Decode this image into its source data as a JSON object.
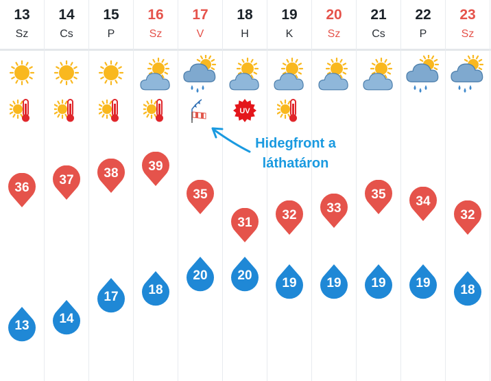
{
  "days": [
    {
      "date": "13",
      "name": "Sz",
      "weekend": false,
      "weather": "sunny-icon",
      "badge": "hot-thermometer-icon",
      "max": "36",
      "min": "13"
    },
    {
      "date": "14",
      "name": "Cs",
      "weekend": false,
      "weather": "sunny-icon",
      "badge": "hot-thermometer-icon",
      "max": "37",
      "min": "14"
    },
    {
      "date": "15",
      "name": "P",
      "weekend": false,
      "weather": "sunny-icon",
      "badge": "hot-thermometer-icon",
      "max": "38",
      "min": "17"
    },
    {
      "date": "16",
      "name": "Sz",
      "weekend": true,
      "weather": "partly-cloudy-icon",
      "badge": "hot-thermometer-icon",
      "max": "39",
      "min": "18"
    },
    {
      "date": "17",
      "name": "V",
      "weekend": true,
      "weather": "cloud-sun-rain-icon",
      "badge": "cold-front-windsock-icon",
      "max": "35",
      "min": "20"
    },
    {
      "date": "18",
      "name": "H",
      "weekend": false,
      "weather": "partly-cloudy-icon",
      "badge": "uv-warning-icon",
      "max": "31",
      "min": "20"
    },
    {
      "date": "19",
      "name": "K",
      "weekend": false,
      "weather": "partly-cloudy-icon",
      "badge": "hot-thermometer-icon",
      "max": "32",
      "min": "19"
    },
    {
      "date": "20",
      "name": "Sz",
      "weekend": true,
      "weather": "partly-cloudy-icon",
      "badge": "",
      "max": "33",
      "min": "19"
    },
    {
      "date": "21",
      "name": "Cs",
      "weekend": false,
      "weather": "partly-cloudy-icon",
      "badge": "",
      "max": "35",
      "min": "19"
    },
    {
      "date": "22",
      "name": "P",
      "weekend": false,
      "weather": "cloud-sun-rain-icon",
      "badge": "",
      "max": "34",
      "min": "19"
    },
    {
      "date": "23",
      "name": "Sz",
      "weekend": true,
      "weather": "cloud-sun-rain-icon",
      "badge": "",
      "max": "32",
      "min": "18"
    }
  ],
  "uv_label": "UV",
  "annotation": {
    "line1": "Hidegfront a",
    "line2": "láthatáron"
  },
  "colors": {
    "max_marker": "#e5534b",
    "min_marker": "#1f88d6",
    "weekend_text": "#e5534b",
    "annotation": "#1a9ae0",
    "sun": "#f9b81f",
    "cloud": "#6a9ec9",
    "thermometer": "#e0262b"
  }
}
